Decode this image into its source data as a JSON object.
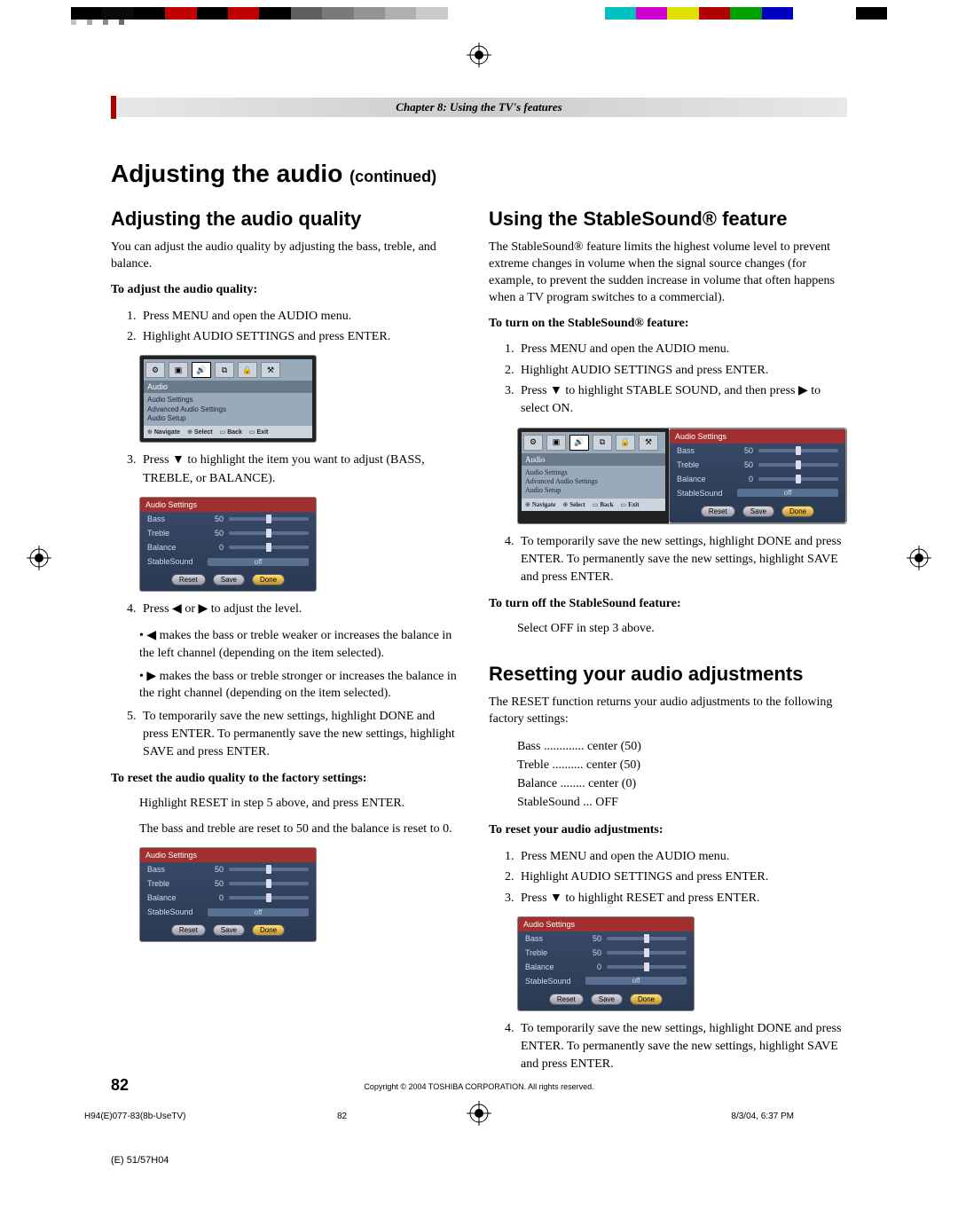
{
  "colorBar": [
    "#000000",
    "#0a0a0a",
    "#000000",
    "#c00000",
    "#000000",
    "#c00000",
    "#000000",
    "#606060",
    "#7a7a7a",
    "#949494",
    "#b0b0b0",
    "#cacaca",
    "#ffffff",
    "#ffffff",
    "#ffffff",
    "#ffffff",
    "#ffffff",
    "#00c0c0",
    "#d000d0",
    "#e0e000",
    "#b00000",
    "#00a000",
    "#0000c0",
    "#ffffff",
    "#ffffff",
    "#000000"
  ],
  "calibSquares": [
    "#c0c0c0",
    "#a8a8a8",
    "#8c8c8c",
    "#6e6e6e"
  ],
  "chapter": "Chapter 8: Using the TV's features",
  "mainTitle": "Adjusting the audio",
  "mainTitleSuffix": "(continued)",
  "left": {
    "h2": "Adjusting the audio quality",
    "intro": "You can adjust the audio quality by adjusting the bass, treble, and balance.",
    "sub1": "To adjust the audio quality:",
    "li1": "Press MENU and open the AUDIO menu.",
    "li2": "Highlight AUDIO SETTINGS and press ENTER.",
    "li3": "Press ▼ to highlight the item you want to adjust (BASS, TREBLE, or BALANCE).",
    "li4": "Press ◀ or ▶ to adjust the level.",
    "b1": "◀ makes the bass or treble weaker or increases the balance in the left channel (depending on the item selected).",
    "b2": "▶ makes the bass or treble stronger or increases the balance in the right channel (depending on the item selected).",
    "li5": "To temporarily save the new settings, highlight DONE and press ENTER. To permanently save the new settings, highlight SAVE and press ENTER.",
    "sub2": "To reset the audio quality to the factory settings:",
    "reset1": "Highlight RESET in step 5 above, and press ENTER.",
    "reset2": "The bass and treble are reset to 50 and the balance is reset to 0."
  },
  "right": {
    "h2a": "Using the StableSound® feature",
    "intro": "The StableSound® feature limits the highest volume level to prevent extreme changes in volume when the signal source changes (for example, to prevent the sudden increase in volume that often happens when a TV program switches to a commercial).",
    "sub1": "To turn on the StableSound® feature:",
    "li1": "Press MENU and open the AUDIO menu.",
    "li2": "Highlight AUDIO SETTINGS and press ENTER.",
    "li3": "Press ▼ to highlight STABLE SOUND, and then press ▶ to select ON.",
    "li4": "To temporarily save the new settings, highlight DONE and press ENTER. To permanently save the new settings, highlight SAVE and press ENTER.",
    "sub2": "To turn off the StableSound feature:",
    "off": "Select OFF in step 3 above.",
    "h2b": "Resetting your audio adjustments",
    "intro2": "The RESET function returns your audio adjustments to the following factory settings:",
    "factory": {
      "bass": "Bass .............  center (50)",
      "treble": "Treble ..........  center (50)",
      "balance": "Balance ........  center (0)",
      "stable": "StableSound ...  OFF"
    },
    "sub3": "To reset your audio adjustments:",
    "rli1": "Press MENU and open the AUDIO menu.",
    "rli2": "Highlight AUDIO SETTINGS and press ENTER.",
    "rli3": "Press ▼ to highlight RESET and press ENTER.",
    "rli4": "To temporarily save the new settings, highlight DONE and press ENTER. To permanently save the new settings, highlight SAVE and press ENTER."
  },
  "menu": {
    "label": "Audio",
    "items": [
      "Audio Settings",
      "Advanced Audio Settings",
      "Audio Setup"
    ],
    "footer": [
      "Navigate",
      "Select",
      "Back",
      "Exit"
    ]
  },
  "audioPanel": {
    "title": "Audio Settings",
    "rows": [
      {
        "label": "Bass",
        "value": "50",
        "pos": 50
      },
      {
        "label": "Treble",
        "value": "50",
        "pos": 50
      },
      {
        "label": "Balance",
        "value": "0",
        "pos": 50
      }
    ],
    "stableLabel": "StableSound",
    "stableValue": "off",
    "buttons": [
      "Reset",
      "Save",
      "Done"
    ]
  },
  "pageNum": "82",
  "copyright": "Copyright © 2004 TOSHIBA CORPORATION. All rights reserved.",
  "footerLeft": "H94(E)077-83(8b-UseTV)",
  "footerMid": "82",
  "footerRight": "8/3/04, 6:37 PM",
  "footerEdge": "(E) 51/57H04"
}
